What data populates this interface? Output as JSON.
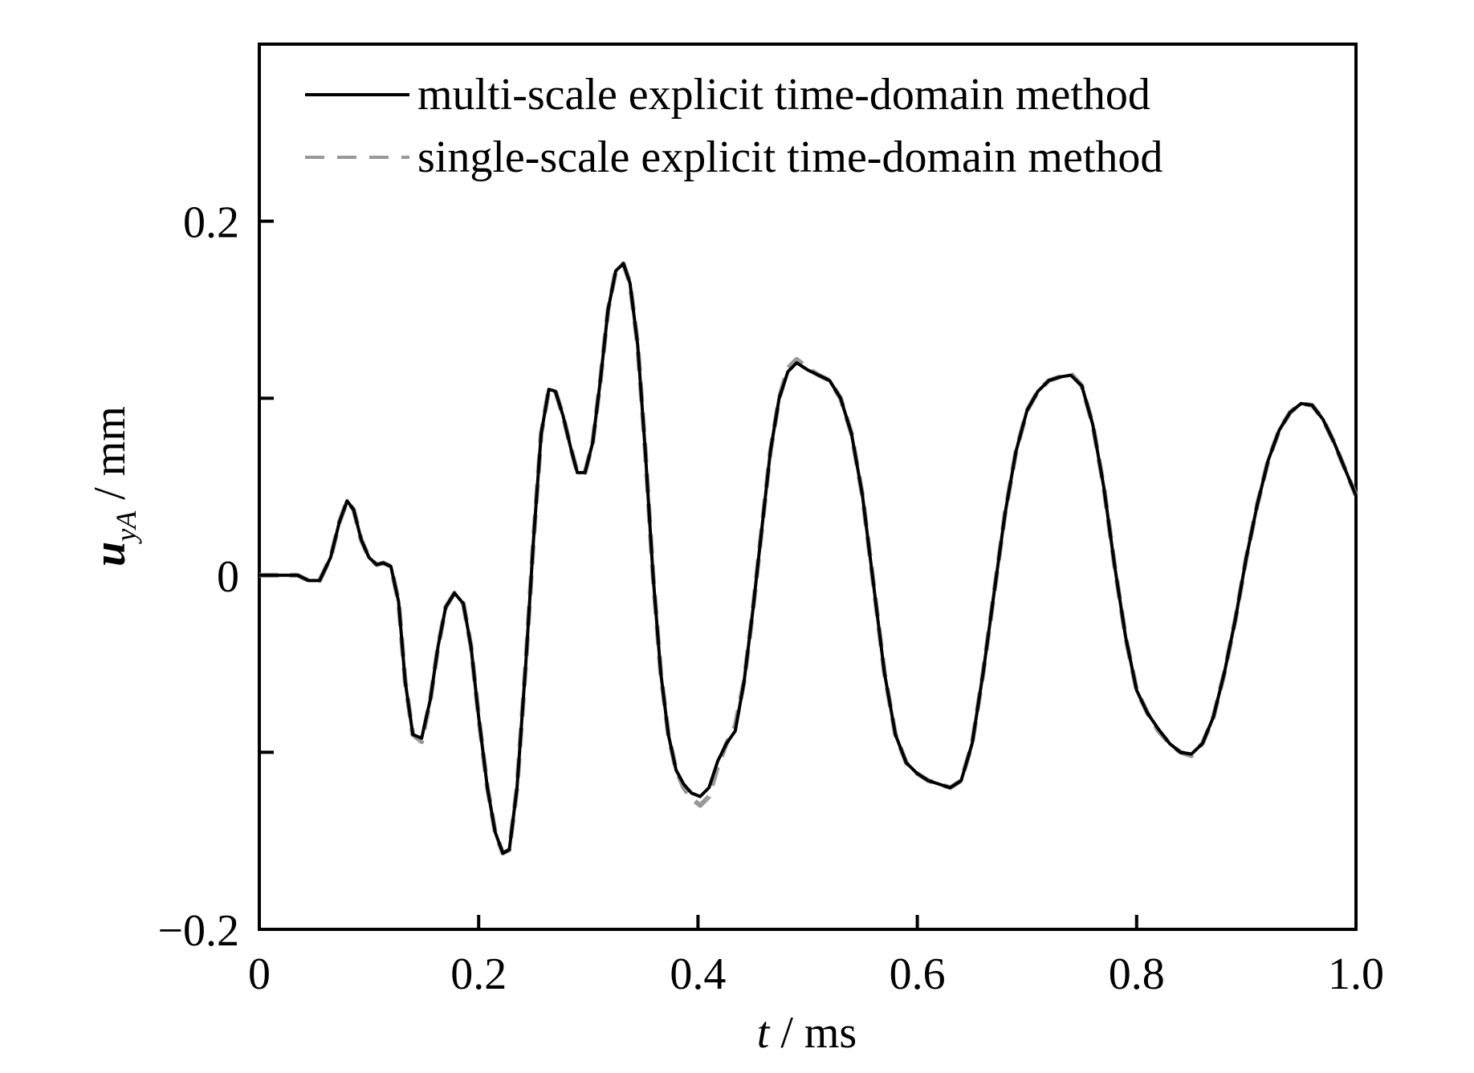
{
  "chart_data": {
    "type": "line",
    "xlabel": {
      "symbol": "t",
      "unit": " / ms"
    },
    "ylabel": {
      "symbol": "u",
      "subscript": "yA",
      "unit": " / mm"
    },
    "xlim": [
      0,
      1.0
    ],
    "ylim": [
      -0.2,
      0.3
    ],
    "x_ticks": [
      {
        "value": 0,
        "label": "0"
      },
      {
        "value": 0.2,
        "label": "0.2"
      },
      {
        "value": 0.4,
        "label": "0.4"
      },
      {
        "value": 0.6,
        "label": "0.6"
      },
      {
        "value": 0.8,
        "label": "0.8"
      },
      {
        "value": 1.0,
        "label": "1.0"
      }
    ],
    "y_ticks": [
      {
        "value": -0.2,
        "label": "−0.2"
      },
      {
        "value": -0.1,
        "label": ""
      },
      {
        "value": 0,
        "label": "0"
      },
      {
        "value": 0.1,
        "label": ""
      },
      {
        "value": 0.2,
        "label": "0.2"
      }
    ],
    "legend_position": "top",
    "series": [
      {
        "name": "multi-scale explicit time-domain method",
        "color": "#000000",
        "style": "solid",
        "points": [
          [
            0,
            0
          ],
          [
            0.02,
            0
          ],
          [
            0.035,
            0
          ],
          [
            0.045,
            -0.003
          ],
          [
            0.055,
            -0.003
          ],
          [
            0.065,
            0.01
          ],
          [
            0.073,
            0.03
          ],
          [
            0.08,
            0.042
          ],
          [
            0.086,
            0.037
          ],
          [
            0.093,
            0.02
          ],
          [
            0.1,
            0.01
          ],
          [
            0.107,
            0.006
          ],
          [
            0.113,
            0.007
          ],
          [
            0.12,
            0.005
          ],
          [
            0.127,
            -0.015
          ],
          [
            0.133,
            -0.06
          ],
          [
            0.14,
            -0.09
          ],
          [
            0.148,
            -0.092
          ],
          [
            0.156,
            -0.07
          ],
          [
            0.163,
            -0.04
          ],
          [
            0.17,
            -0.018
          ],
          [
            0.178,
            -0.01
          ],
          [
            0.186,
            -0.016
          ],
          [
            0.193,
            -0.04
          ],
          [
            0.2,
            -0.08
          ],
          [
            0.208,
            -0.12
          ],
          [
            0.215,
            -0.145
          ],
          [
            0.222,
            -0.157
          ],
          [
            0.228,
            -0.155
          ],
          [
            0.235,
            -0.12
          ],
          [
            0.243,
            -0.05
          ],
          [
            0.25,
            0.02
          ],
          [
            0.257,
            0.08
          ],
          [
            0.264,
            0.105
          ],
          [
            0.27,
            0.104
          ],
          [
            0.277,
            0.09
          ],
          [
            0.284,
            0.072
          ],
          [
            0.29,
            0.058
          ],
          [
            0.297,
            0.058
          ],
          [
            0.304,
            0.075
          ],
          [
            0.311,
            0.11
          ],
          [
            0.318,
            0.15
          ],
          [
            0.325,
            0.172
          ],
          [
            0.332,
            0.176
          ],
          [
            0.338,
            0.165
          ],
          [
            0.345,
            0.13
          ],
          [
            0.352,
            0.07
          ],
          [
            0.359,
            0.0
          ],
          [
            0.366,
            -0.055
          ],
          [
            0.373,
            -0.09
          ],
          [
            0.38,
            -0.11
          ],
          [
            0.387,
            -0.118
          ],
          [
            0.394,
            -0.123
          ],
          [
            0.402,
            -0.125
          ],
          [
            0.41,
            -0.12
          ],
          [
            0.418,
            -0.105
          ],
          [
            0.426,
            -0.095
          ],
          [
            0.434,
            -0.088
          ],
          [
            0.442,
            -0.06
          ],
          [
            0.45,
            -0.02
          ],
          [
            0.458,
            0.025
          ],
          [
            0.466,
            0.07
          ],
          [
            0.474,
            0.1
          ],
          [
            0.482,
            0.115
          ],
          [
            0.49,
            0.12
          ],
          [
            0.5,
            0.116
          ],
          [
            0.51,
            0.113
          ],
          [
            0.52,
            0.11
          ],
          [
            0.53,
            0.1
          ],
          [
            0.54,
            0.08
          ],
          [
            0.55,
            0.045
          ],
          [
            0.56,
            -0.005
          ],
          [
            0.57,
            -0.055
          ],
          [
            0.58,
            -0.09
          ],
          [
            0.59,
            -0.106
          ],
          [
            0.6,
            -0.112
          ],
          [
            0.61,
            -0.116
          ],
          [
            0.62,
            -0.118
          ],
          [
            0.63,
            -0.12
          ],
          [
            0.64,
            -0.116
          ],
          [
            0.65,
            -0.095
          ],
          [
            0.66,
            -0.055
          ],
          [
            0.67,
            -0.01
          ],
          [
            0.68,
            0.035
          ],
          [
            0.69,
            0.07
          ],
          [
            0.7,
            0.093
          ],
          [
            0.71,
            0.104
          ],
          [
            0.72,
            0.11
          ],
          [
            0.73,
            0.112
          ],
          [
            0.74,
            0.113
          ],
          [
            0.75,
            0.107
          ],
          [
            0.76,
            0.085
          ],
          [
            0.77,
            0.05
          ],
          [
            0.78,
            0.005
          ],
          [
            0.79,
            -0.035
          ],
          [
            0.8,
            -0.065
          ],
          [
            0.81,
            -0.078
          ],
          [
            0.82,
            -0.087
          ],
          [
            0.83,
            -0.095
          ],
          [
            0.84,
            -0.1
          ],
          [
            0.85,
            -0.101
          ],
          [
            0.86,
            -0.095
          ],
          [
            0.87,
            -0.08
          ],
          [
            0.88,
            -0.055
          ],
          [
            0.89,
            -0.025
          ],
          [
            0.9,
            0.01
          ],
          [
            0.91,
            0.04
          ],
          [
            0.92,
            0.065
          ],
          [
            0.93,
            0.082
          ],
          [
            0.94,
            0.092
          ],
          [
            0.95,
            0.097
          ],
          [
            0.96,
            0.096
          ],
          [
            0.97,
            0.088
          ],
          [
            0.98,
            0.075
          ],
          [
            0.99,
            0.06
          ],
          [
            1.0,
            0.045
          ]
        ]
      },
      {
        "name": "single-scale explicit time-domain method",
        "color": "#999999",
        "style": "dashed",
        "points": [
          [
            0,
            0
          ],
          [
            0.02,
            0
          ],
          [
            0.035,
            0
          ],
          [
            0.045,
            -0.003
          ],
          [
            0.055,
            -0.003
          ],
          [
            0.065,
            0.01
          ],
          [
            0.073,
            0.03
          ],
          [
            0.08,
            0.042
          ],
          [
            0.086,
            0.037
          ],
          [
            0.093,
            0.02
          ],
          [
            0.1,
            0.01
          ],
          [
            0.107,
            0.006
          ],
          [
            0.113,
            0.007
          ],
          [
            0.12,
            0.005
          ],
          [
            0.127,
            -0.015
          ],
          [
            0.133,
            -0.06
          ],
          [
            0.14,
            -0.09
          ],
          [
            0.148,
            -0.094
          ],
          [
            0.156,
            -0.07
          ],
          [
            0.163,
            -0.04
          ],
          [
            0.17,
            -0.018
          ],
          [
            0.178,
            -0.01
          ],
          [
            0.186,
            -0.016
          ],
          [
            0.193,
            -0.04
          ],
          [
            0.2,
            -0.08
          ],
          [
            0.208,
            -0.12
          ],
          [
            0.215,
            -0.145
          ],
          [
            0.222,
            -0.157
          ],
          [
            0.228,
            -0.155
          ],
          [
            0.235,
            -0.12
          ],
          [
            0.243,
            -0.05
          ],
          [
            0.25,
            0.02
          ],
          [
            0.257,
            0.08
          ],
          [
            0.264,
            0.105
          ],
          [
            0.27,
            0.104
          ],
          [
            0.277,
            0.09
          ],
          [
            0.284,
            0.072
          ],
          [
            0.29,
            0.058
          ],
          [
            0.297,
            0.058
          ],
          [
            0.304,
            0.075
          ],
          [
            0.311,
            0.11
          ],
          [
            0.318,
            0.15
          ],
          [
            0.325,
            0.172
          ],
          [
            0.332,
            0.176
          ],
          [
            0.338,
            0.165
          ],
          [
            0.345,
            0.13
          ],
          [
            0.352,
            0.07
          ],
          [
            0.359,
            0.0
          ],
          [
            0.366,
            -0.055
          ],
          [
            0.373,
            -0.09
          ],
          [
            0.38,
            -0.11
          ],
          [
            0.387,
            -0.12
          ],
          [
            0.394,
            -0.126
          ],
          [
            0.402,
            -0.13
          ],
          [
            0.41,
            -0.125
          ],
          [
            0.418,
            -0.108
          ],
          [
            0.426,
            -0.095
          ],
          [
            0.434,
            -0.085
          ],
          [
            0.442,
            -0.06
          ],
          [
            0.45,
            -0.02
          ],
          [
            0.458,
            0.025
          ],
          [
            0.466,
            0.07
          ],
          [
            0.474,
            0.1
          ],
          [
            0.482,
            0.117
          ],
          [
            0.49,
            0.122
          ],
          [
            0.5,
            0.117
          ],
          [
            0.51,
            0.113
          ],
          [
            0.52,
            0.11
          ],
          [
            0.53,
            0.1
          ],
          [
            0.54,
            0.08
          ],
          [
            0.55,
            0.045
          ],
          [
            0.56,
            -0.005
          ],
          [
            0.57,
            -0.055
          ],
          [
            0.58,
            -0.09
          ],
          [
            0.59,
            -0.106
          ],
          [
            0.6,
            -0.112
          ],
          [
            0.61,
            -0.116
          ],
          [
            0.62,
            -0.118
          ],
          [
            0.63,
            -0.12
          ],
          [
            0.64,
            -0.116
          ],
          [
            0.65,
            -0.095
          ],
          [
            0.66,
            -0.055
          ],
          [
            0.67,
            -0.01
          ],
          [
            0.68,
            0.035
          ],
          [
            0.69,
            0.07
          ],
          [
            0.7,
            0.093
          ],
          [
            0.71,
            0.104
          ],
          [
            0.72,
            0.11
          ],
          [
            0.73,
            0.112
          ],
          [
            0.74,
            0.114
          ],
          [
            0.75,
            0.107
          ],
          [
            0.76,
            0.085
          ],
          [
            0.77,
            0.05
          ],
          [
            0.78,
            0.005
          ],
          [
            0.79,
            -0.035
          ],
          [
            0.8,
            -0.065
          ],
          [
            0.81,
            -0.078
          ],
          [
            0.82,
            -0.088
          ],
          [
            0.83,
            -0.095
          ],
          [
            0.84,
            -0.1
          ],
          [
            0.85,
            -0.102
          ],
          [
            0.86,
            -0.095
          ],
          [
            0.87,
            -0.08
          ],
          [
            0.88,
            -0.055
          ],
          [
            0.89,
            -0.025
          ],
          [
            0.9,
            0.01
          ],
          [
            0.91,
            0.04
          ],
          [
            0.92,
            0.065
          ],
          [
            0.93,
            0.082
          ],
          [
            0.94,
            0.092
          ],
          [
            0.95,
            0.097
          ],
          [
            0.96,
            0.096
          ],
          [
            0.97,
            0.088
          ],
          [
            0.98,
            0.075
          ],
          [
            0.99,
            0.06
          ],
          [
            1.0,
            0.045
          ]
        ]
      }
    ]
  }
}
